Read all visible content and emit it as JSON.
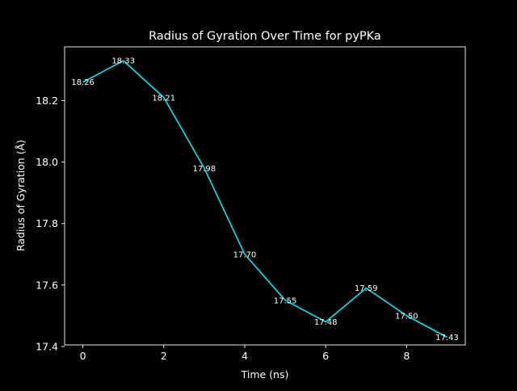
{
  "chart_data": {
    "type": "line",
    "title": "Radius of Gyration Over Time for pyPKa",
    "xlabel": "Time (ns)",
    "ylabel": "Radius of Gyration (Å)",
    "x": [
      0,
      1,
      2,
      3,
      4,
      5,
      6,
      7,
      8,
      9
    ],
    "series": [
      {
        "values": [
          18.26,
          18.33,
          18.21,
          17.98,
          17.7,
          17.55,
          17.48,
          17.59,
          17.5,
          17.43
        ],
        "labels": [
          "18.26",
          "18.33",
          "18.21",
          "17.98",
          "17.70",
          "17.55",
          "17.48",
          "17.59",
          "17.50",
          "17.43"
        ],
        "color": "#00e5ee"
      }
    ],
    "xlim": [
      -0.45,
      9.45
    ],
    "ylim": [
      17.405,
      18.375
    ],
    "xticks": [
      0,
      2,
      4,
      6,
      8
    ],
    "xtick_labels": [
      "0",
      "2",
      "4",
      "6",
      "8"
    ],
    "yticks": [
      17.4,
      17.6,
      17.8,
      18.0,
      18.2
    ],
    "ytick_labels": [
      "17.4",
      "17.6",
      "17.8",
      "18.0",
      "18.2"
    ],
    "grid": false,
    "background": "#000000",
    "foreground": "#ffffff"
  }
}
